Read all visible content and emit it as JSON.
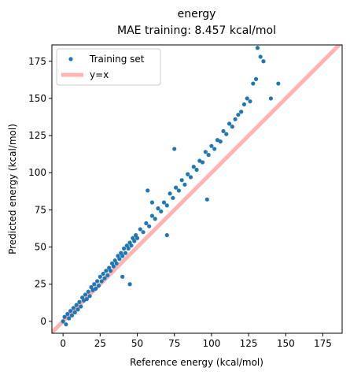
{
  "chart_data": {
    "type": "scatter",
    "title": "energy",
    "subtitle": "MAE training: 8.457 kcal/mol",
    "x_label": "Reference energy (kcal/mol)",
    "y_label": "Predicted energy (kcal/mol)",
    "xlim": [
      -7.5,
      188
    ],
    "ylim": [
      -8,
      186
    ],
    "xticks": [
      0,
      25,
      50,
      75,
      100,
      125,
      150,
      175
    ],
    "yticks": [
      0,
      25,
      50,
      75,
      100,
      125,
      150,
      175
    ],
    "legend": "upper left",
    "series": [
      {
        "name": "Training set",
        "color": "#1f77b4",
        "x": [
          0,
          1,
          2,
          3,
          4,
          5,
          6,
          7,
          8,
          9,
          10,
          11,
          12,
          13,
          14,
          15,
          16,
          17,
          18,
          19,
          20,
          21,
          22,
          23,
          24,
          25,
          26,
          27,
          28,
          29,
          30,
          31,
          32,
          33,
          34,
          35,
          36,
          37,
          38,
          39,
          40,
          41,
          42,
          43,
          44,
          45,
          46,
          47,
          48,
          49,
          50,
          52,
          54,
          56,
          58,
          60,
          62,
          64,
          66,
          68,
          70,
          72,
          74,
          76,
          78,
          80,
          82,
          84,
          86,
          88,
          90,
          92,
          94,
          96,
          98,
          100,
          102,
          104,
          106,
          108,
          110,
          112,
          114,
          116,
          118,
          120,
          122,
          124,
          126,
          128,
          130,
          131,
          133,
          135,
          140,
          145,
          75,
          57,
          97,
          45,
          40,
          70,
          60
        ],
        "values": [
          0,
          3,
          -2,
          5,
          2,
          7,
          4,
          9,
          6,
          11,
          8,
          13,
          10,
          16,
          14,
          18,
          15,
          20,
          17,
          23,
          21,
          25,
          22,
          27,
          24,
          30,
          27,
          32,
          29,
          34,
          31,
          36,
          34,
          39,
          37,
          41,
          39,
          44,
          42,
          46,
          44,
          49,
          46,
          51,
          49,
          53,
          51,
          56,
          54,
          58,
          56,
          62,
          60,
          66,
          64,
          71,
          69,
          76,
          74,
          80,
          78,
          86,
          83,
          90,
          88,
          95,
          92,
          99,
          97,
          104,
          102,
          108,
          107,
          114,
          112,
          118,
          116,
          122,
          121,
          128,
          126,
          133,
          131,
          136,
          139,
          141,
          146,
          150,
          148,
          160,
          163,
          184,
          178,
          175,
          150,
          160,
          116,
          88,
          82,
          25,
          30,
          58,
          80
        ]
      }
    ],
    "reference_line": {
      "name": "y=x",
      "color": "#ffb3b3"
    }
  }
}
